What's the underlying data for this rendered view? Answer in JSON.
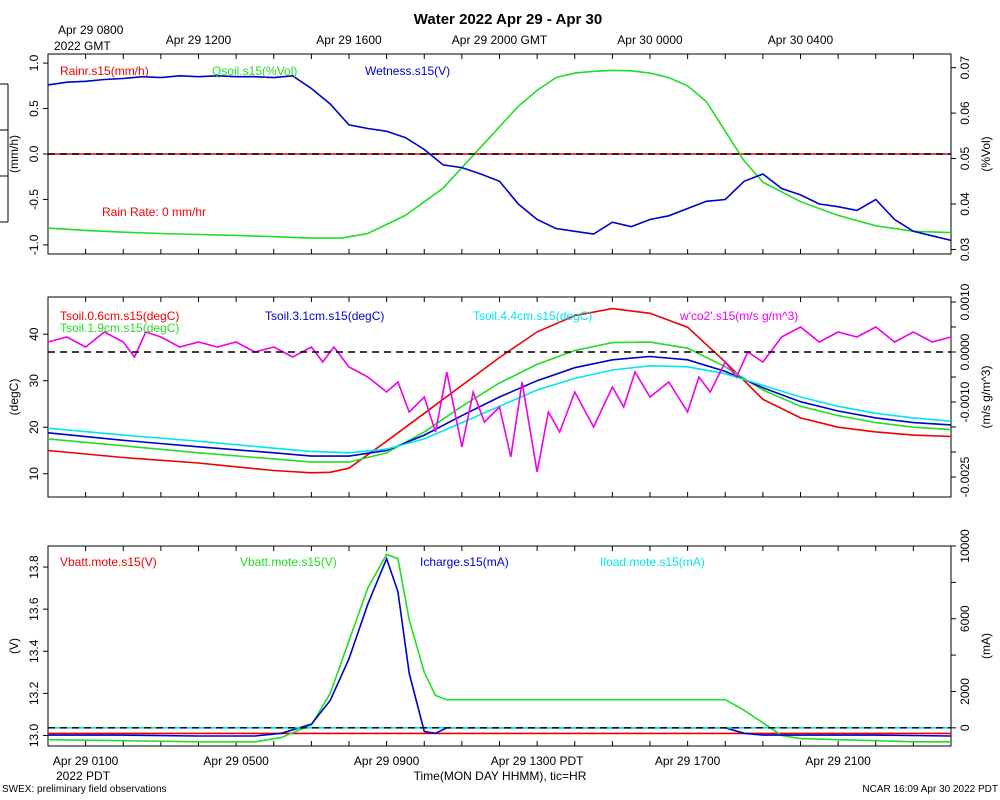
{
  "title": "Water 2022 Apr 29 - Apr 30",
  "top_axis": {
    "first_label": "Apr 29 0800",
    "first_sub": "2022 GMT",
    "ticks": [
      {
        "t": 4,
        "label": "Apr 29 1200"
      },
      {
        "t": 8,
        "label": "Apr 29 1600"
      },
      {
        "t": 12,
        "label": "Apr 29 2000 GMT"
      },
      {
        "t": 16,
        "label": "Apr 30 0000"
      },
      {
        "t": 20,
        "label": "Apr 30 0400"
      }
    ]
  },
  "bottom_axis": {
    "ticks": [
      {
        "t": 1,
        "label": "Apr 29 0100"
      },
      {
        "t": 5,
        "label": "Apr 29 0500"
      },
      {
        "t": 9,
        "label": "Apr 29 0900"
      },
      {
        "t": 13,
        "label": "Apr 29 1300 PDT"
      },
      {
        "t": 17,
        "label": "Apr 29 1700"
      },
      {
        "t": 21,
        "label": "Apr 29 2100"
      }
    ],
    "sub_label": "2022 PDT",
    "xlabel": "Time(MON DAY HHMM), tic=HR"
  },
  "footer": {
    "left": "SWEX: preliminary field observations",
    "right": "NCAR 16:09 Apr 30 2022 PDT"
  },
  "colors": {
    "red": "#ee0000",
    "green": "#22dd22",
    "blue": "#0000cc",
    "cyan": "#00e5ee",
    "magenta": "#ee00ee"
  },
  "chart_data": [
    {
      "type": "line",
      "name": "water",
      "xlim": [
        0,
        24
      ],
      "left_axis": {
        "label": "(mm/h)",
        "ylim": [
          -1.1,
          1.1
        ],
        "ticks": [
          -1.0,
          -0.5,
          0.0,
          0.5,
          1.0
        ],
        "tick_labels": [
          "-1.0",
          "-0.5",
          "0.0",
          "0.5",
          "1.0"
        ]
      },
      "right_axis": {
        "label": "(%Vol)",
        "ylim": [
          0.029,
          0.073
        ],
        "ticks": [
          0.03,
          0.04,
          0.05,
          0.06,
          0.07
        ],
        "tick_labels": [
          "0.03",
          "0.04",
          "0.05",
          "0.06",
          "0.07"
        ]
      },
      "reference_line": {
        "axis": "left",
        "value": 0.0
      },
      "annotation": "Rain Rate: 0 mm/hr",
      "series": [
        {
          "name": "Rainr.s15(mm/h)",
          "color": "red",
          "axis": "left",
          "x": [
            0,
            24
          ],
          "values": [
            0,
            0
          ]
        },
        {
          "name": "Qsoil.s15(%Vol)",
          "color": "green",
          "axis": "right",
          "x": [
            0,
            1,
            2,
            3,
            4,
            5,
            6,
            7,
            7.8,
            8.5,
            9.5,
            10.5,
            11.5,
            12.5,
            13,
            13.5,
            14,
            14.5,
            15,
            15.5,
            16,
            16.5,
            17,
            17.5,
            18,
            18.5,
            19,
            20,
            21,
            22,
            23,
            24
          ],
          "values": [
            0.0347,
            0.0342,
            0.0338,
            0.0335,
            0.0333,
            0.0331,
            0.0328,
            0.0325,
            0.0325,
            0.0335,
            0.0375,
            0.0435,
            0.0525,
            0.0615,
            0.065,
            0.0678,
            0.0688,
            0.0692,
            0.0694,
            0.0693,
            0.0688,
            0.0678,
            0.066,
            0.0625,
            0.056,
            0.0495,
            0.0448,
            0.0405,
            0.0375,
            0.0352,
            0.034,
            0.0337
          ]
        },
        {
          "name": "Wetness.s15(V)",
          "color": "blue",
          "axis": "left",
          "x": [
            0,
            0.5,
            1,
            1.5,
            2,
            2.5,
            3,
            3.5,
            4,
            4.5,
            5,
            5.5,
            6,
            6.5,
            7,
            7.5,
            8,
            8.5,
            9,
            9.5,
            10,
            10.5,
            11,
            11.5,
            12,
            12.5,
            13,
            13.5,
            14,
            14.5,
            15,
            15.5,
            16,
            16.5,
            17,
            17.5,
            18,
            18.5,
            19,
            19.5,
            20,
            20.5,
            21,
            21.5,
            22,
            22.5,
            23,
            23.5,
            24
          ],
          "values": [
            0.76,
            0.79,
            0.8,
            0.82,
            0.83,
            0.85,
            0.84,
            0.86,
            0.85,
            0.86,
            0.85,
            0.85,
            0.84,
            0.86,
            0.72,
            0.55,
            0.32,
            0.28,
            0.25,
            0.18,
            0.05,
            -0.12,
            -0.15,
            -0.22,
            -0.3,
            -0.55,
            -0.72,
            -0.82,
            -0.85,
            -0.88,
            -0.75,
            -0.8,
            -0.72,
            -0.68,
            -0.6,
            -0.52,
            -0.5,
            -0.3,
            -0.22,
            -0.38,
            -0.45,
            -0.55,
            -0.58,
            -0.62,
            -0.5,
            -0.72,
            -0.85,
            -0.9,
            -0.95
          ]
        }
      ]
    },
    {
      "type": "line",
      "name": "soil temperature",
      "xlim": [
        0,
        24
      ],
      "left_axis": {
        "label": "(degC)",
        "ylim": [
          5,
          48
        ],
        "ticks": [
          10,
          20,
          30,
          40
        ],
        "tick_labels": [
          "10",
          "20",
          "30",
          "40"
        ]
      },
      "right_axis": {
        "label": "(m/s g/m^3)",
        "ylim": [
          -0.0029,
          0.0011
        ],
        "ticks": [
          -0.0025,
          -0.002,
          -0.0015,
          -0.001,
          -0.0005,
          0.0,
          0.0005,
          0.001
        ],
        "tick_labels": [
          "-0.0025",
          "",
          "",
          "-0.0010",
          "",
          "0.0000",
          "",
          "0.0010"
        ]
      },
      "reference_line": {
        "axis": "right",
        "value": 0.0
      },
      "series": [
        {
          "name": "Tsoil.0.6cm.s15(degC)",
          "color": "red",
          "axis": "left",
          "x": [
            0,
            2,
            4,
            5,
            6,
            7,
            7.5,
            8,
            9,
            10,
            11,
            12,
            13,
            14,
            15,
            16,
            17,
            18,
            19,
            20,
            21,
            22,
            23,
            24
          ],
          "values": [
            15,
            13.5,
            12.3,
            11.5,
            10.7,
            10.2,
            10.3,
            11.2,
            17,
            23,
            29,
            35,
            40.5,
            44,
            45.5,
            44.5,
            41.5,
            34,
            26,
            22,
            20,
            19,
            18.3,
            18
          ]
        },
        {
          "name": "Tsoil.1.9cm.s15(degC)",
          "color": "green",
          "axis": "left",
          "x": [
            0,
            2,
            4,
            6,
            7,
            8,
            9,
            10,
            11,
            12,
            13,
            14,
            15,
            16,
            17,
            18,
            19,
            20,
            21,
            22,
            23,
            24
          ],
          "values": [
            17.5,
            16,
            14.5,
            13.2,
            12.5,
            12.5,
            14.5,
            19,
            24.5,
            29.5,
            33.5,
            36.5,
            38.2,
            38.3,
            37,
            33,
            28,
            24.5,
            22.5,
            21,
            20,
            19.5
          ]
        },
        {
          "name": "Tsoil.3.1cm.s15(degC)",
          "color": "blue",
          "axis": "left",
          "x": [
            0,
            2,
            4,
            6,
            7,
            8,
            9,
            10,
            11,
            12,
            13,
            14,
            15,
            16,
            17,
            18,
            19,
            20,
            21,
            22,
            23,
            24
          ],
          "values": [
            18.8,
            17.2,
            15.8,
            14.5,
            13.8,
            13.8,
            15,
            18.3,
            22.5,
            26.5,
            30,
            32.8,
            34.5,
            35.2,
            34.5,
            32,
            28.5,
            25.5,
            23.5,
            22,
            21,
            20.5
          ]
        },
        {
          "name": "Tsoil.4.4cm.s15(degC)",
          "color": "cyan",
          "axis": "left",
          "x": [
            0,
            2,
            4,
            6,
            7,
            8,
            9,
            10,
            11,
            12,
            13,
            14,
            15,
            16,
            17,
            18,
            19,
            20,
            21,
            22,
            23,
            24
          ],
          "values": [
            19.8,
            18.3,
            17,
            15.5,
            14.8,
            14.5,
            15.3,
            17.5,
            21,
            24.5,
            28,
            30.5,
            32.3,
            33.2,
            33,
            31.5,
            29,
            26.5,
            24.5,
            23,
            22,
            21.3
          ]
        },
        {
          "name": "w'co2'.s15(m/s g/m^3)",
          "color": "magenta",
          "axis": "right",
          "x": [
            0,
            0.5,
            1,
            1.5,
            2,
            2.3,
            2.6,
            3,
            3.5,
            4,
            4.5,
            5,
            5.5,
            6,
            6.5,
            7,
            7.3,
            7.6,
            8,
            8.5,
            9,
            9.3,
            9.6,
            10,
            10.3,
            10.6,
            11,
            11.3,
            11.6,
            12,
            12.3,
            12.6,
            13,
            13.3,
            13.6,
            14,
            14.5,
            15,
            15.3,
            15.6,
            16,
            16.5,
            17,
            17.3,
            17.6,
            18,
            18.3,
            18.6,
            19,
            19.5,
            20,
            20.5,
            21,
            21.5,
            22,
            22.5,
            23,
            23.5,
            24
          ],
          "values": [
            0.0002,
            0.0003,
            0.0001,
            0.0004,
            0.0002,
            -0.0001,
            0.0004,
            0.0003,
            0.0001,
            0.0002,
            0.0001,
            0.0002,
            0.0,
            0.0001,
            -0.0001,
            0.0001,
            -0.0002,
            0.0001,
            -0.0003,
            -0.0005,
            -0.0008,
            -0.0006,
            -0.0012,
            -0.0009,
            -0.0016,
            -0.0004,
            -0.0019,
            -0.0008,
            -0.0014,
            -0.0011,
            -0.0021,
            -0.0006,
            -0.0024,
            -0.0012,
            -0.0016,
            -0.0008,
            -0.0015,
            -0.0007,
            -0.0011,
            -0.0004,
            -0.0009,
            -0.0006,
            -0.0012,
            -0.0005,
            -0.0008,
            -0.0002,
            -0.0005,
            0.0,
            -0.0002,
            0.0003,
            0.0005,
            0.0002,
            0.0004,
            0.0003,
            0.0005,
            0.0002,
            0.0004,
            0.0002,
            0.0003
          ]
        }
      ]
    },
    {
      "type": "line",
      "name": "power",
      "xlim": [
        0,
        24
      ],
      "left_axis": {
        "label": "(V)",
        "ylim": [
          12.95,
          13.9
        ],
        "ticks": [
          13.0,
          13.2,
          13.4,
          13.6,
          13.8
        ],
        "tick_labels": [
          "13.0",
          "13.2",
          "13.4",
          "13.6",
          "13.8"
        ]
      },
      "right_axis": {
        "label": "(mA)",
        "ylim": [
          -1000,
          10000
        ],
        "ticks": [
          0,
          2000,
          4000,
          6000,
          8000,
          10000
        ],
        "tick_labels": [
          "0",
          "2000",
          "",
          "6000",
          "",
          "10000"
        ]
      },
      "reference_line": {
        "axis": "right",
        "value": 0
      },
      "series": [
        {
          "name": "Vbatt.mote.s15(V)",
          "color": "red",
          "axis": "left",
          "x": [
            0,
            24
          ],
          "values": [
            13.01,
            13.01
          ]
        },
        {
          "name": "Vbatt.mote.s15(V)",
          "color": "green",
          "axis": "left",
          "x": [
            0,
            2,
            4,
            5.5,
            6.2,
            7,
            7.5,
            8,
            8.5,
            9,
            9.3,
            9.6,
            10,
            10.3,
            10.6,
            11,
            11.5,
            12,
            13,
            14,
            15,
            16,
            17,
            18,
            18.5,
            19,
            19.5,
            20,
            21,
            22,
            23,
            24
          ],
          "values": [
            12.98,
            12.975,
            12.97,
            12.97,
            12.99,
            13.05,
            13.2,
            13.45,
            13.7,
            13.86,
            13.84,
            13.55,
            13.3,
            13.19,
            13.17,
            13.17,
            13.17,
            13.17,
            13.17,
            13.17,
            13.17,
            13.17,
            13.17,
            13.17,
            13.12,
            13.06,
            13.0,
            12.985,
            12.98,
            12.975,
            12.97,
            12.97
          ]
        },
        {
          "name": "Icharge.s15(mA)",
          "color": "blue",
          "axis": "right",
          "x": [
            0,
            2,
            4,
            5.5,
            6.2,
            7,
            7.5,
            8,
            8.5,
            9,
            9.3,
            9.6,
            10,
            10.3,
            10.6,
            11,
            11.5,
            12,
            14,
            16,
            18,
            18.5,
            19,
            19.5,
            20,
            22,
            24
          ],
          "values": [
            -400,
            -400,
            -450,
            -450,
            -300,
            200,
            1500,
            3800,
            6800,
            9300,
            7500,
            3000,
            -200,
            -300,
            0,
            0,
            0,
            0,
            0,
            0,
            0,
            -300,
            -400,
            -400,
            -400,
            -400,
            -450
          ]
        },
        {
          "name": "Iload.mote.s15(mA)",
          "color": "cyan",
          "axis": "right",
          "x": [
            0,
            24
          ],
          "values": [
            0,
            0
          ]
        }
      ]
    }
  ]
}
